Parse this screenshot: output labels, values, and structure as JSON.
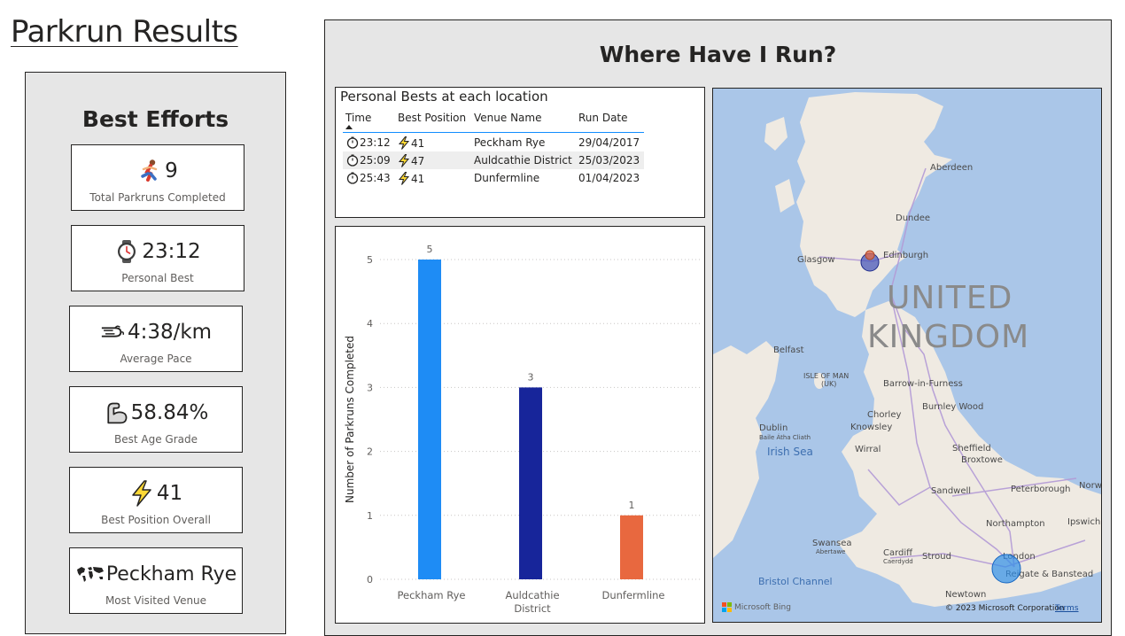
{
  "page": {
    "title": "Parkrun Results"
  },
  "best_efforts": {
    "title": "Best Efforts",
    "cards": [
      {
        "icon": "runner-icon",
        "value": "9",
        "label": "Total Parkruns Completed"
      },
      {
        "icon": "watch-icon",
        "value": "23:12",
        "label": "Personal Best"
      },
      {
        "icon": "wind-icon",
        "value": "4:38/km",
        "label": "Average Pace"
      },
      {
        "icon": "flexed-arm-icon",
        "value": "58.84%",
        "label": "Best Age Grade"
      },
      {
        "icon": "lightning-icon",
        "value": "41",
        "label": "Best Position Overall"
      },
      {
        "icon": "world-map-icon",
        "value": "Peckham Rye",
        "label": "Most Visited Venue"
      }
    ]
  },
  "where": {
    "title": "Where Have I Run?"
  },
  "pb_table": {
    "title": "Personal Bests at each location",
    "columns": [
      "Time",
      "Best Position",
      "Venue Name",
      "Run Date"
    ],
    "rows": [
      {
        "time": "23:12",
        "position": "41",
        "venue": "Peckham Rye",
        "date": "29/04/2017"
      },
      {
        "time": "25:09",
        "position": "47",
        "venue": "Auldcathie District",
        "date": "25/03/2023"
      },
      {
        "time": "25:43",
        "position": "41",
        "venue": "Dunfermline",
        "date": "01/04/2023"
      }
    ]
  },
  "chart_data": {
    "type": "bar",
    "categories": [
      "Peckham Rye",
      "Auldcathie District",
      "Dunfermline"
    ],
    "category_lines": [
      [
        "Peckham Rye"
      ],
      [
        "Auldcathie",
        "District"
      ],
      [
        "Dunfermline"
      ]
    ],
    "values": [
      5,
      3,
      1
    ],
    "data_labels": [
      "5",
      "3",
      "1"
    ],
    "colors": [
      "#1e8cf5",
      "#17259a",
      "#e8683f"
    ],
    "ylabel": "Number of Parkruns Completed",
    "xlabel": "",
    "ylim": [
      0,
      5
    ],
    "yticks": [
      0,
      1,
      2,
      3,
      4,
      5
    ],
    "grid": true
  },
  "map": {
    "country_label_1": "UNITED",
    "country_label_2": "KINGDOM",
    "places": [
      "Aberdeen",
      "Dundee",
      "Glasgow",
      "Edinburgh",
      "Belfast",
      "Barrow-in-Furness",
      "Burnley Wood",
      "Chorley",
      "Knowsley",
      "Dublin",
      "Sheffield",
      "Broxtowe",
      "Wirral",
      "Sandwell",
      "Peterborough",
      "Norwich",
      "Ipswich",
      "Northampton",
      "Swansea",
      "Cardiff",
      "Stroud",
      "London",
      "Reigate & Banstead",
      "Newtown"
    ],
    "small_labels": [
      "ISLE OF MAN",
      "(UK)",
      "Baile Átha Cliath",
      "Abertawe",
      "Caerdydd"
    ],
    "seas": [
      "Irish Sea",
      "Bristol Channel"
    ],
    "copyright": "© 2023 Microsoft Corporation",
    "terms": "Terms",
    "provider": "Microsoft Bing"
  }
}
